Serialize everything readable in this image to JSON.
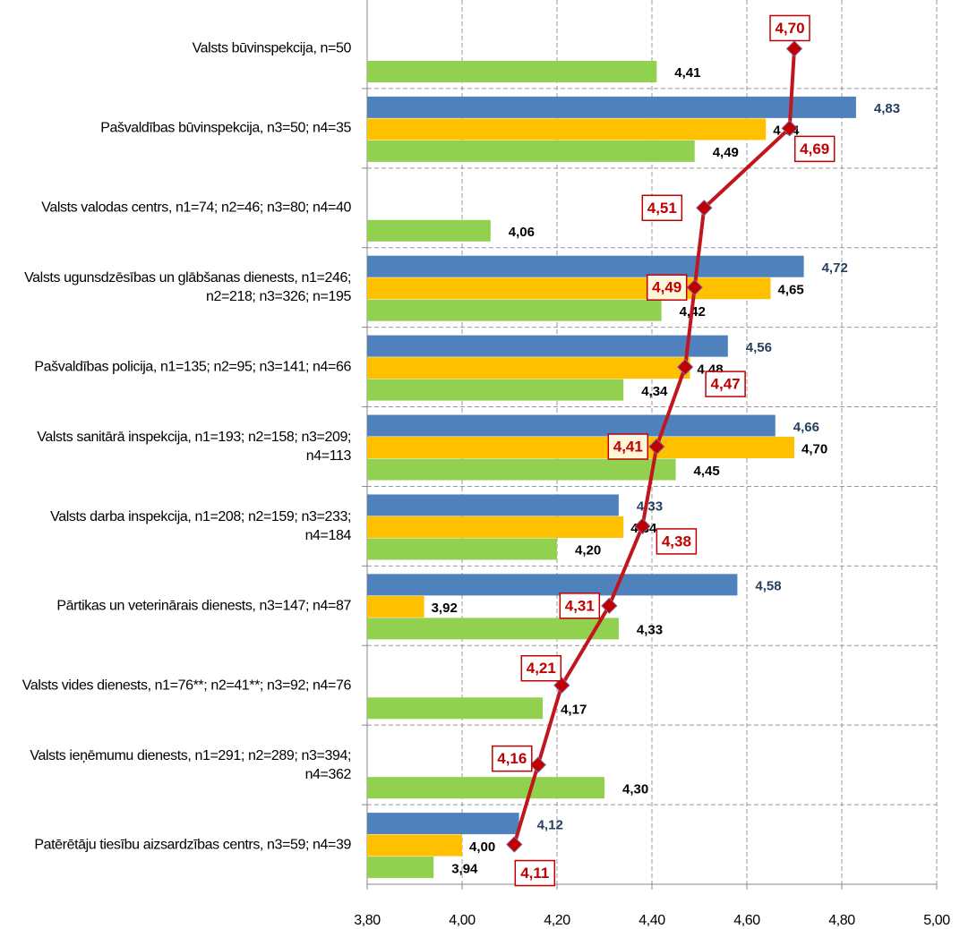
{
  "chart_data": {
    "type": "bar",
    "orientation": "horizontal",
    "categories": [
      "Valsts būvinspekcija, n=50",
      "Pašvaldības būvinspekcija, n3=50; n4=35",
      "Valsts valodas centrs, n1=74; n2=46; n3=80; n4=40",
      "Valsts ugunsdzēsības un glābšanas dienests, n1=246; n2=218; n3=326; n=195",
      "Pašvaldības policija, n1=135; n2=95; n3=141; n4=66",
      "Valsts sanitārā inspekcija, n1=193; n2=158; n3=209; n4=113",
      "Valsts darba inspekcija, n1=208; n2=159; n3=233; n4=184",
      "Pārtikas un veterinārais dienests, n3=147; n4=87",
      "Valsts vides dienests, n1=76**; n2=41**; n3=92; n4=76",
      "Valsts ieņēmumu dienests, n1=291; n2=289; n3=394; n4=362",
      "Patērētāju tiesību aizsardzības centrs, n3=59; n4=39"
    ],
    "series": [
      {
        "type": "bar",
        "color": "#4f81bd",
        "label_color": "#243f60",
        "values": [
          null,
          4.83,
          null,
          4.72,
          4.56,
          4.66,
          4.33,
          4.58,
          null,
          null,
          4.12
        ],
        "value_labels": [
          null,
          "4,83",
          null,
          "4,72",
          "4,56",
          "4,66",
          "4,33",
          "4,58",
          null,
          null,
          "4,12"
        ]
      },
      {
        "type": "bar",
        "color": "#ffc000",
        "label_color": "#000000",
        "values": [
          null,
          4.64,
          null,
          4.65,
          4.48,
          4.7,
          4.34,
          3.92,
          null,
          null,
          4.0
        ],
        "value_labels": [
          null,
          "4,64",
          null,
          "4,65",
          "4,48",
          "4,70",
          "4,34",
          "3,92",
          null,
          null,
          "4,00"
        ]
      },
      {
        "type": "bar",
        "color": "#92d050",
        "label_color": "#000000",
        "values": [
          4.41,
          4.49,
          4.06,
          4.42,
          4.34,
          4.45,
          4.2,
          4.33,
          4.17,
          4.3,
          3.94
        ],
        "value_labels": [
          "4,41",
          "4,49",
          "4,06",
          "4,42",
          "4,34",
          "4,45",
          "4,20",
          "4,33",
          "4,17",
          "4,30",
          "3,94"
        ]
      },
      {
        "type": "line",
        "color": "#c0161d",
        "marker_color": "#c00000",
        "values": [
          4.7,
          4.69,
          4.51,
          4.49,
          4.47,
          4.41,
          4.38,
          4.31,
          4.21,
          4.16,
          4.11
        ],
        "value_labels": [
          "4,70",
          "4,69",
          "4,51",
          "4,49",
          "4,47",
          "4,41",
          "4,38",
          "4,31",
          "4,21",
          "4,16",
          "4,11"
        ]
      }
    ],
    "xlim": [
      3.8,
      5.0
    ],
    "xticks": [
      {
        "value": 3.8,
        "label": "3,80"
      },
      {
        "value": 4.0,
        "label": "4,00"
      },
      {
        "value": 4.2,
        "label": "4,20"
      },
      {
        "value": 4.4,
        "label": "4,40"
      },
      {
        "value": 4.6,
        "label": "4,60"
      },
      {
        "value": 4.8,
        "label": "4,80"
      },
      {
        "value": 5.0,
        "label": "5,00"
      }
    ],
    "grid": true
  }
}
